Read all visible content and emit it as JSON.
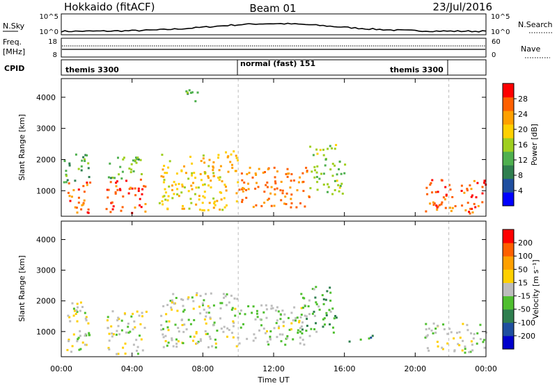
{
  "header": {
    "station": "Hokkaido (fitACF)",
    "beam": "Beam 01",
    "date": "23/Jul/2016"
  },
  "noise_panel": {
    "left_label": "N.Sky",
    "left_ticks": [
      "10^5",
      "10^0"
    ],
    "right_label": "N.Search",
    "right_ticks": [
      "10^5",
      "10^0"
    ]
  },
  "freq_panel": {
    "left_label_1": "Freq.",
    "left_label_2": "[MHz]",
    "left_ticks": [
      "18",
      "8"
    ],
    "right_label": "Nave",
    "right_ticks": [
      "60",
      "0"
    ]
  },
  "cpid_panel": {
    "label": "CPID",
    "segments": [
      "themis 3300",
      "normal (fast) 151",
      "themis 3300"
    ]
  },
  "power_panel": {
    "ylabel": "Slant Range [km]",
    "yticks": [
      "4000",
      "3000",
      "2000",
      "1000"
    ],
    "colorbar_label": "Power [dB]",
    "colorbar_ticks": [
      "28",
      "24",
      "20",
      "16",
      "12",
      "8",
      "4"
    ],
    "colors": [
      "#0000ff",
      "#1f4f9f",
      "#2f7f4f",
      "#4fb04f",
      "#9fcf1f",
      "#ffd000",
      "#ffa000",
      "#ff6000",
      "#ff0000"
    ]
  },
  "velocity_panel": {
    "ylabel": "Slant Range [km]",
    "yticks": [
      "4000",
      "3000",
      "2000",
      "1000"
    ],
    "colorbar_label": "Velocity [m s⁻¹]",
    "colorbar_ticks": [
      "200",
      "100",
      "50",
      "15",
      "-15",
      "-50",
      "-100",
      "-200"
    ],
    "colors": [
      "#0000cc",
      "#1f4f9f",
      "#2f7f4f",
      "#4fbf2f",
      "#bdbdbd",
      "#ffd000",
      "#ffa000",
      "#ff6000",
      "#ff0000"
    ]
  },
  "xaxis": {
    "label": "Time UT",
    "ticks": [
      "00:00",
      "04:00",
      "08:00",
      "12:00",
      "16:00",
      "20:00",
      "00:00"
    ]
  },
  "chart_data": [
    {
      "type": "heatmap",
      "title": "Power [dB]",
      "xlabel": "Time UT",
      "ylabel": "Slant Range [km]",
      "xlim": [
        0,
        24
      ],
      "ylim": [
        180,
        4600
      ],
      "clim": [
        0,
        32
      ],
      "regions": [
        {
          "t": [
            0.1,
            1.6
          ],
          "r": [
            300,
            1300
          ],
          "value": 26
        },
        {
          "t": [
            0.1,
            1.6
          ],
          "r": [
            1300,
            2200
          ],
          "value": 12
        },
        {
          "t": [
            2.5,
            4.8
          ],
          "r": [
            300,
            1400
          ],
          "value": 27
        },
        {
          "t": [
            2.5,
            4.5
          ],
          "r": [
            1400,
            2200
          ],
          "value": 14
        },
        {
          "t": [
            5.5,
            10
          ],
          "r": [
            400,
            2300
          ],
          "value": 20
        },
        {
          "t": [
            10,
            14
          ],
          "r": [
            500,
            1800
          ],
          "value": 25
        },
        {
          "t": [
            14,
            16
          ],
          "r": [
            900,
            2500
          ],
          "value": 15
        },
        {
          "t": [
            20.5,
            24
          ],
          "r": [
            300,
            1400
          ],
          "value": 27
        },
        {
          "t": [
            7,
            8.2
          ],
          "r": [
            3900,
            4300
          ],
          "value": 12
        }
      ]
    },
    {
      "type": "heatmap",
      "title": "Velocity [m s⁻¹]",
      "xlabel": "Time UT",
      "ylabel": "Slant Range [km]",
      "xlim": [
        0,
        24
      ],
      "ylim": [
        180,
        4600
      ],
      "clim": [
        -250,
        250
      ],
      "regions": [
        {
          "t": [
            0.1,
            1.6
          ],
          "r": [
            300,
            2000
          ],
          "value": 0
        },
        {
          "t": [
            2.5,
            4.8
          ],
          "r": [
            300,
            1700
          ],
          "value": 0
        },
        {
          "t": [
            5.5,
            10
          ],
          "r": [
            500,
            2300
          ],
          "value": 0
        },
        {
          "t": [
            10,
            14
          ],
          "r": [
            600,
            1900
          ],
          "value": -20
        },
        {
          "t": [
            13.5,
            15.5
          ],
          "r": [
            1000,
            2500
          ],
          "value": -60
        },
        {
          "t": [
            16.2,
            17.6
          ],
          "r": [
            700,
            900
          ],
          "value": -120
        },
        {
          "t": [
            12.4,
            13.6
          ],
          "r": [
            1100,
            1400
          ],
          "value": 30
        },
        {
          "t": [
            20.5,
            24
          ],
          "r": [
            300,
            1300
          ],
          "value": 0
        }
      ]
    }
  ]
}
